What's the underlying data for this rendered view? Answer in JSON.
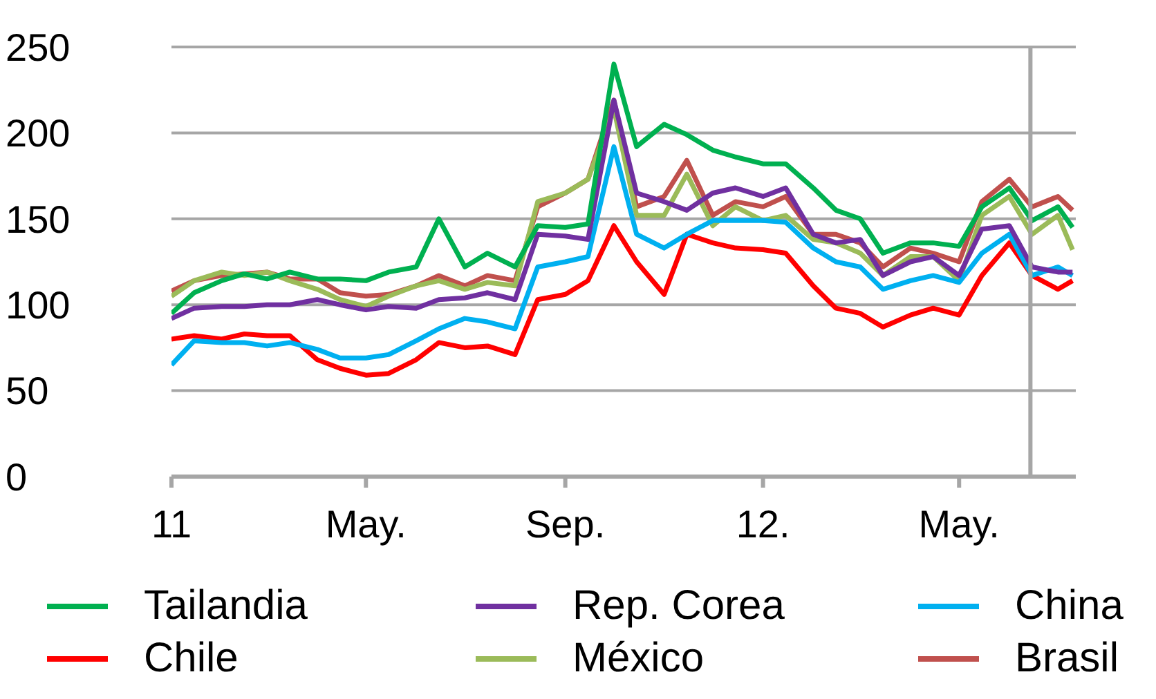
{
  "chart_data": {
    "type": "line",
    "x": [
      "2011-01-01",
      "2011-01-15",
      "2011-02-01",
      "2011-02-15",
      "2011-03-01",
      "2011-03-15",
      "2011-04-01",
      "2011-04-15",
      "2011-05-01",
      "2011-05-15",
      "2011-06-01",
      "2011-06-15",
      "2011-07-01",
      "2011-07-15",
      "2011-08-01",
      "2011-08-15",
      "2011-09-01",
      "2011-09-15",
      "2011-10-01",
      "2011-10-15",
      "2011-11-01",
      "2011-11-15",
      "2011-12-01",
      "2011-12-15",
      "2012-01-01",
      "2012-01-15",
      "2012-02-01",
      "2012-02-15",
      "2012-03-01",
      "2012-03-15",
      "2012-04-01",
      "2012-04-15",
      "2012-05-01",
      "2012-05-15",
      "2012-06-01",
      "2012-06-15",
      "2012-07-01",
      "2012-07-10"
    ],
    "series": [
      {
        "name": "Tailandia",
        "color": "#00b050",
        "values": [
          95,
          107,
          114,
          118,
          115,
          119,
          115,
          115,
          114,
          119,
          122,
          150,
          122,
          130,
          122,
          146,
          145,
          147,
          240,
          192,
          205,
          199,
          190,
          186,
          182,
          182,
          168,
          155,
          150,
          130,
          136,
          136,
          134,
          157,
          168,
          149,
          157,
          145
        ]
      },
      {
        "name": "Rep. Corea",
        "color": "#7030a0",
        "values": [
          92,
          98,
          99,
          99,
          100,
          100,
          103,
          100,
          97,
          99,
          98,
          103,
          104,
          107,
          103,
          141,
          140,
          138,
          219,
          165,
          160,
          155,
          165,
          168,
          163,
          168,
          141,
          136,
          138,
          117,
          125,
          128,
          117,
          144,
          146,
          122,
          119,
          119
        ]
      },
      {
        "name": "China",
        "color": "#00b0f0",
        "values": [
          65,
          79,
          78,
          78,
          76,
          78,
          74,
          69,
          69,
          71,
          79,
          86,
          92,
          90,
          86,
          122,
          125,
          128,
          192,
          141,
          133,
          141,
          149,
          149,
          149,
          148,
          133,
          125,
          122,
          109,
          114,
          117,
          113,
          130,
          141,
          117,
          122,
          117
        ]
      },
      {
        "name": "Chile",
        "color": "#ff0000",
        "values": [
          80,
          82,
          80,
          83,
          82,
          82,
          68,
          63,
          59,
          60,
          68,
          78,
          75,
          76,
          71,
          103,
          106,
          114,
          146,
          125,
          106,
          141,
          136,
          133,
          132,
          130,
          111,
          98,
          95,
          87,
          94,
          98,
          94,
          117,
          136,
          117,
          109,
          114
        ]
      },
      {
        "name": "México",
        "color": "#9bbb59",
        "values": [
          105,
          114,
          119,
          117,
          119,
          114,
          109,
          103,
          99,
          105,
          111,
          114,
          109,
          113,
          111,
          160,
          165,
          173,
          214,
          152,
          152,
          176,
          146,
          157,
          149,
          152,
          138,
          136,
          130,
          117,
          128,
          128,
          114,
          152,
          163,
          141,
          152,
          132
        ]
      },
      {
        "name": "Brasil",
        "color": "#c0504d",
        "values": [
          108,
          114,
          117,
          118,
          119,
          115,
          115,
          107,
          105,
          106,
          111,
          117,
          111,
          117,
          114,
          157,
          165,
          173,
          219,
          157,
          163,
          184,
          152,
          160,
          157,
          163,
          141,
          141,
          136,
          122,
          133,
          130,
          125,
          160,
          173,
          157,
          163,
          155
        ]
      }
    ],
    "xlim": [
      "2011-01-01",
      "2012-07-12"
    ],
    "xticks": [
      {
        "value": "2011-01-01",
        "label": "11"
      },
      {
        "value": "2011-05-01",
        "label": "May."
      },
      {
        "value": "2011-09-01",
        "label": "Sep."
      },
      {
        "value": "2012-01-01",
        "label": "12."
      },
      {
        "value": "2012-05-01",
        "label": "May."
      }
    ],
    "ylim": [
      0,
      250
    ],
    "yticks": [
      0,
      50,
      100,
      150,
      200,
      250
    ],
    "ref_lines": [
      {
        "axis": "x",
        "value": "2012-06-14",
        "color": "#a6a6a6"
      }
    ],
    "grid": "y",
    "legend": "bottom"
  }
}
